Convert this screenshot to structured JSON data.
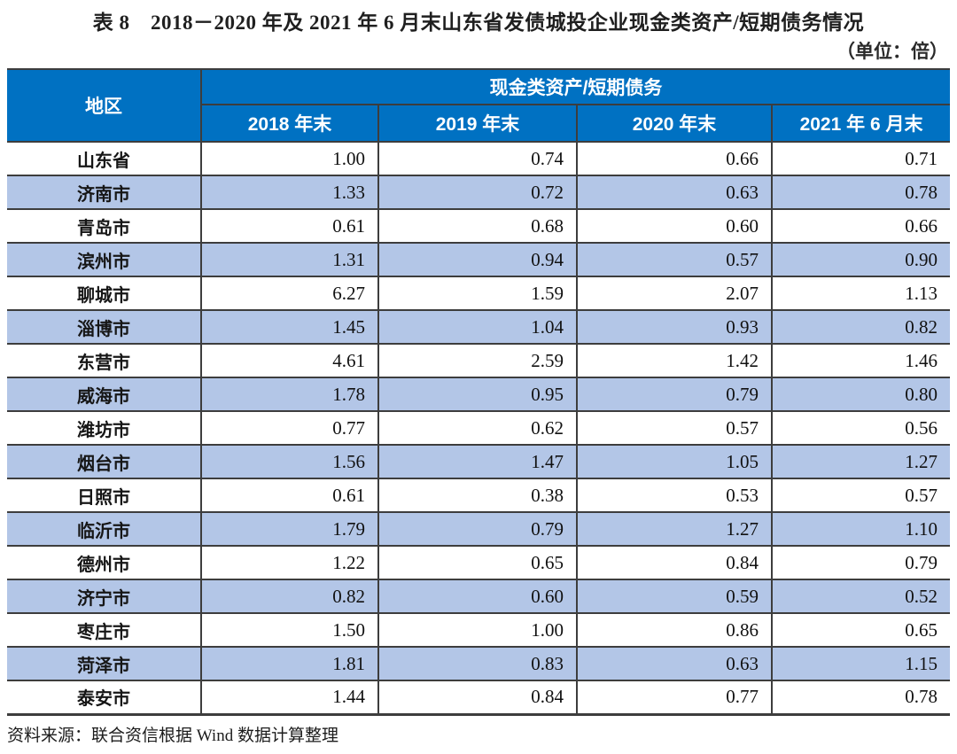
{
  "title": "表 8　2018－2020 年及 2021 年 6 月末山东省发债城投企业现金类资产/短期债务情况",
  "unit_note": "（单位：倍）",
  "table": {
    "region_header": "地区",
    "group_header": "现金类资产/短期债务",
    "period_headers": [
      "2018 年末",
      "2019 年末",
      "2020 年末",
      "2021 年 6 月末"
    ],
    "rows": [
      {
        "region": "山东省",
        "values": [
          "1.00",
          "0.74",
          "0.66",
          "0.71"
        ]
      },
      {
        "region": "济南市",
        "values": [
          "1.33",
          "0.72",
          "0.63",
          "0.78"
        ]
      },
      {
        "region": "青岛市",
        "values": [
          "0.61",
          "0.68",
          "0.60",
          "0.66"
        ]
      },
      {
        "region": "滨州市",
        "values": [
          "1.31",
          "0.94",
          "0.57",
          "0.90"
        ]
      },
      {
        "region": "聊城市",
        "values": [
          "6.27",
          "1.59",
          "2.07",
          "1.13"
        ]
      },
      {
        "region": "淄博市",
        "values": [
          "1.45",
          "1.04",
          "0.93",
          "0.82"
        ]
      },
      {
        "region": "东营市",
        "values": [
          "4.61",
          "2.59",
          "1.42",
          "1.46"
        ]
      },
      {
        "region": "威海市",
        "values": [
          "1.78",
          "0.95",
          "0.79",
          "0.80"
        ]
      },
      {
        "region": "潍坊市",
        "values": [
          "0.77",
          "0.62",
          "0.57",
          "0.56"
        ]
      },
      {
        "region": "烟台市",
        "values": [
          "1.56",
          "1.47",
          "1.05",
          "1.27"
        ]
      },
      {
        "region": "日照市",
        "values": [
          "0.61",
          "0.38",
          "0.53",
          "0.57"
        ]
      },
      {
        "region": "临沂市",
        "values": [
          "1.79",
          "0.79",
          "1.27",
          "1.10"
        ]
      },
      {
        "region": "德州市",
        "values": [
          "1.22",
          "0.65",
          "0.84",
          "0.79"
        ]
      },
      {
        "region": "济宁市",
        "values": [
          "0.82",
          "0.60",
          "0.59",
          "0.52"
        ]
      },
      {
        "region": "枣庄市",
        "values": [
          "1.50",
          "1.00",
          "0.86",
          "0.65"
        ]
      },
      {
        "region": "菏泽市",
        "values": [
          "1.81",
          "0.83",
          "0.63",
          "1.15"
        ]
      },
      {
        "region": "泰安市",
        "values": [
          "1.44",
          "0.84",
          "0.77",
          "0.78"
        ]
      }
    ]
  },
  "source_note": "资料来源：联合资信根据 Wind 数据计算整理",
  "colors": {
    "header_bg": "#0071C2",
    "stripe_bg": "#B3C6E7",
    "border": "#3D3D3D",
    "header_text": "#FFFFFF",
    "text": "#1A1A1A"
  }
}
